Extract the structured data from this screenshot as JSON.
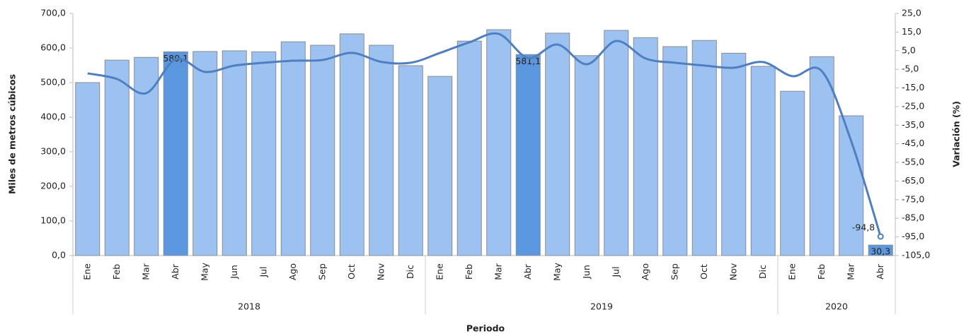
{
  "chart_data": {
    "type": "combo",
    "categories": [
      "Ene",
      "Feb",
      "Mar",
      "Abr",
      "May",
      "Jun",
      "Jul",
      "Ago",
      "Sep",
      "Oct",
      "Nov",
      "Dic",
      "Ene",
      "Feb",
      "Mar",
      "Abr",
      "May",
      "Jun",
      "Jul",
      "Ago",
      "Sep",
      "Oct",
      "Nov",
      "Dic",
      "Ene",
      "Feb",
      "Mar",
      "Abr"
    ],
    "groups": [
      {
        "label": "2018",
        "span": 12
      },
      {
        "label": "2019",
        "span": 12
      },
      {
        "label": "2020",
        "span": 4
      }
    ],
    "x_label": "Periodo",
    "y_label": "Miles de metros cúbicos",
    "y2_label": "Variación (%)",
    "ylim": [
      0,
      700
    ],
    "yticks": [
      {
        "value": 0,
        "label": "0,0"
      },
      {
        "value": 100,
        "label": "100,0"
      },
      {
        "value": 200,
        "label": "200,0"
      },
      {
        "value": 300,
        "label": "300,0"
      },
      {
        "value": 400,
        "label": "400,0"
      },
      {
        "value": 500,
        "label": "500,0"
      },
      {
        "value": 600,
        "label": "600,0"
      },
      {
        "value": 700,
        "label": "700,0"
      }
    ],
    "y2lim": [
      -105,
      25
    ],
    "y2ticks": [
      {
        "value": 25,
        "label": "25,0"
      },
      {
        "value": 15,
        "label": "15,0"
      },
      {
        "value": 5,
        "label": "5,0"
      },
      {
        "value": -5,
        "label": "-5,0"
      },
      {
        "value": -15,
        "label": "-15,0"
      },
      {
        "value": -25,
        "label": "-25,0"
      },
      {
        "value": -35,
        "label": "-35,0"
      },
      {
        "value": -45,
        "label": "-45,0"
      },
      {
        "value": -55,
        "label": "-55,0"
      },
      {
        "value": -65,
        "label": "-65,0"
      },
      {
        "value": -75,
        "label": "-75,0"
      },
      {
        "value": -85,
        "label": "-85,0"
      },
      {
        "value": -95,
        "label": "-95,0"
      },
      {
        "value": -105,
        "label": "-105,0"
      }
    ],
    "series": [
      {
        "type": "bar",
        "color": "#9cc2f1",
        "highlight_color": "#5b97df",
        "highlight": [
          false,
          false,
          false,
          true,
          false,
          false,
          false,
          false,
          false,
          false,
          false,
          false,
          false,
          false,
          false,
          true,
          false,
          false,
          false,
          false,
          false,
          false,
          false,
          false,
          false,
          false,
          false,
          true
        ],
        "values": [
          500,
          565,
          573,
          589.1,
          590,
          592,
          589,
          618,
          608,
          641,
          608,
          549,
          518,
          620,
          653,
          581.1,
          643,
          578,
          651,
          630,
          604,
          622,
          585,
          547,
          475,
          575,
          404,
          30.3
        ],
        "value_labels": [
          null,
          null,
          null,
          "589,1",
          null,
          null,
          null,
          null,
          null,
          null,
          null,
          null,
          null,
          null,
          null,
          "581,1",
          null,
          null,
          null,
          null,
          null,
          null,
          null,
          null,
          null,
          null,
          null,
          "30,3"
        ]
      },
      {
        "type": "line",
        "axis": "y2",
        "color": "#4f7fc0",
        "values": [
          -7.2,
          -10.2,
          -17.8,
          0.4,
          -6.4,
          -3,
          -1.5,
          -0.4,
          0,
          3.8,
          -1,
          -1.5,
          3.8,
          9.5,
          14,
          1.1,
          8.3,
          -2.3,
          10.2,
          0.8,
          -1.5,
          -3,
          -4.2,
          -1.1,
          -8.7,
          -6,
          -43.6,
          -94.8
        ],
        "value_labels": [
          null,
          null,
          null,
          null,
          null,
          null,
          null,
          null,
          null,
          null,
          null,
          null,
          null,
          null,
          null,
          null,
          null,
          null,
          null,
          null,
          null,
          null,
          null,
          null,
          null,
          null,
          null,
          "-94,8"
        ]
      }
    ]
  }
}
